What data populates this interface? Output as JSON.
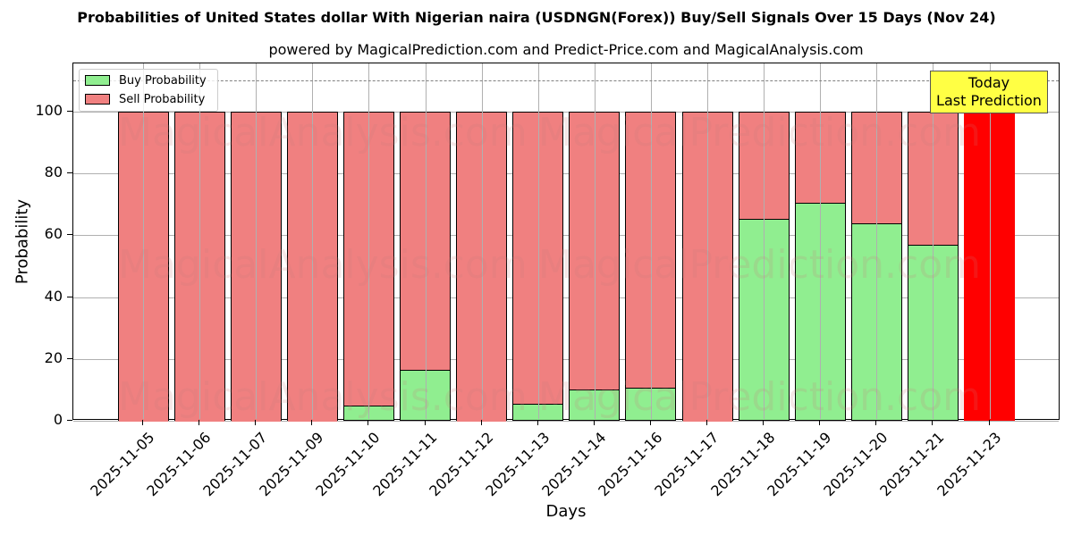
{
  "chart_data": {
    "type": "bar",
    "stacked": true,
    "title": "Probabilities of United States dollar With Nigerian naira (USDNGN(Forex)) Buy/Sell Signals Over 15 Days (Nov 24)",
    "subtitle": "powered by MagicalPrediction.com and Predict-Price.com and MagicalAnalysis.com",
    "xlabel": "Days",
    "ylabel": "Probability",
    "ylim": [
      0,
      115
    ],
    "yticks": [
      0,
      20,
      40,
      60,
      80,
      100
    ],
    "grid": true,
    "legend_position": "upper left",
    "categories": [
      "2025-11-05",
      "2025-11-06",
      "2025-11-07",
      "2025-11-09",
      "2025-11-10",
      "2025-11-11",
      "2025-11-12",
      "2025-11-13",
      "2025-11-14",
      "2025-11-16",
      "2025-11-17",
      "2025-11-18",
      "2025-11-19",
      "2025-11-20",
      "2025-11-21",
      "2025-11-23"
    ],
    "series": [
      {
        "name": "Buy Probability",
        "color": "#90ee90",
        "values": [
          0,
          0,
          0,
          0,
          4.6,
          16.2,
          0,
          5.2,
          9.8,
          10.4,
          0,
          65.0,
          70.2,
          63.6,
          56.6,
          0
        ]
      },
      {
        "name": "Sell Probability",
        "color": "#f08080",
        "values": [
          100,
          100,
          100,
          100,
          95.4,
          83.8,
          100,
          94.8,
          90.2,
          89.6,
          100,
          35.0,
          29.8,
          36.4,
          43.4,
          100
        ]
      }
    ],
    "highlight": {
      "index": 15,
      "color": "#ff0000"
    },
    "reference_line": {
      "y": 110,
      "style": "dashed",
      "color": "#808080"
    },
    "annotation": {
      "line1": "Today",
      "line2": "Last Prediction",
      "background": "#ffff44"
    },
    "watermarks": [
      "MagicalAnalysis.com",
      "MagicalPrediction.com"
    ]
  }
}
